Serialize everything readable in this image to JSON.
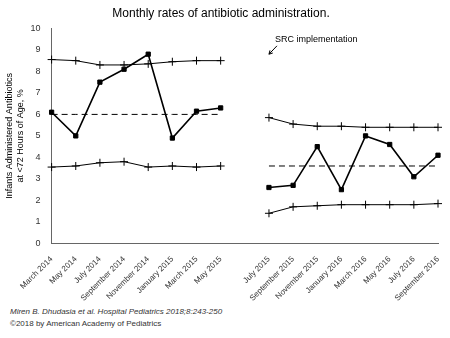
{
  "chart_data": {
    "type": "line",
    "title": "Monthly rates of antibiotic administration.",
    "y_label": "Infants Administered Antibiotics\nat <72 Hours of Age, %",
    "categories": [
      "March 2014",
      "May 2014",
      "July 2014",
      "September 2014",
      "November 2014",
      "January 2015",
      "March 2015",
      "May 2015",
      null,
      "July 2015",
      "September 2015",
      "November 2015",
      "January 2016",
      "March 2016",
      "May 2016",
      "July 2016",
      "September 2016"
    ],
    "series": [
      {
        "color": "#000000",
        "marker": "plus",
        "line_style": "solid",
        "values": [
          8.55,
          8.5,
          8.3,
          8.3,
          8.35,
          8.45,
          8.5,
          8.5,
          null,
          5.85,
          5.55,
          5.45,
          5.45,
          5.4,
          5.4,
          5.4,
          5.4
        ]
      },
      {
        "color": "#000000",
        "marker": "plus",
        "line_style": "solid",
        "values": [
          3.55,
          3.6,
          3.75,
          3.8,
          3.55,
          3.6,
          3.55,
          3.6,
          null,
          1.4,
          1.7,
          1.75,
          1.8,
          1.8,
          1.8,
          1.8,
          1.85
        ]
      },
      {
        "color": "#000000",
        "marker": "none",
        "line_style": "dashed",
        "values": [
          6.0,
          6.0,
          6.0,
          6.0,
          6.0,
          6.0,
          6.0,
          6.0,
          null,
          3.6,
          3.6,
          3.6,
          3.6,
          3.6,
          3.6,
          3.6,
          3.6
        ]
      },
      {
        "color": "#000000",
        "marker": "square",
        "line_style": "solid",
        "values": [
          6.1,
          5.0,
          7.5,
          8.1,
          8.8,
          4.9,
          6.15,
          6.3,
          null,
          2.6,
          2.7,
          4.5,
          2.5,
          5.0,
          4.6,
          3.1,
          4.1
        ]
      }
    ],
    "ylim": [
      0,
      10
    ],
    "yticks": [
      0,
      1,
      2,
      3,
      4,
      5,
      6,
      7,
      8,
      9,
      10
    ],
    "grid": false,
    "annotations": [
      {
        "text": "SRC implementation",
        "x": "July 2015",
        "y": 8.8,
        "text_y": 9.7
      }
    ],
    "footnotes": [
      "Miren B. Dhudasia et al. Hospital Pediatrics 2018;8:243-250",
      "©2018 by American Academy of Pediatrics"
    ]
  }
}
